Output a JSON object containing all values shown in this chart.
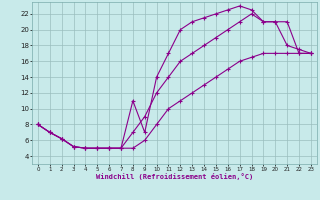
{
  "title": "",
  "xlabel": "Windchill (Refroidissement éolien,°C)",
  "bg_color": "#c8eaea",
  "line_color": "#8b008b",
  "grid_color": "#9bbebe",
  "xlim": [
    -0.5,
    23.5
  ],
  "ylim": [
    3,
    23.5
  ],
  "xticks": [
    0,
    1,
    2,
    3,
    4,
    5,
    6,
    7,
    8,
    9,
    10,
    11,
    12,
    13,
    14,
    15,
    16,
    17,
    18,
    19,
    20,
    21,
    22,
    23
  ],
  "yticks": [
    4,
    6,
    8,
    10,
    12,
    14,
    16,
    18,
    20,
    22
  ],
  "curve1_x": [
    0,
    1,
    2,
    3,
    4,
    5,
    6,
    7,
    8,
    9,
    10,
    11,
    12,
    13,
    14,
    15,
    16,
    17,
    18,
    19,
    20,
    21,
    22,
    23
  ],
  "curve1_y": [
    8,
    7,
    6.2,
    5.2,
    5,
    5,
    5,
    5,
    11,
    7,
    14,
    17,
    20,
    21,
    21.5,
    22,
    22.5,
    23,
    22.5,
    21,
    21,
    18,
    17.5,
    17
  ],
  "curve2_x": [
    0,
    1,
    2,
    3,
    4,
    5,
    6,
    7,
    8,
    9,
    10,
    11,
    12,
    13,
    14,
    15,
    16,
    17,
    18,
    19,
    20,
    21,
    22,
    23
  ],
  "curve2_y": [
    8,
    7,
    6.2,
    5.2,
    5,
    5,
    5,
    5,
    7,
    9,
    12,
    14,
    16,
    17,
    18,
    19,
    20,
    21,
    22,
    21,
    21,
    21,
    17,
    17
  ],
  "curve3_x": [
    0,
    1,
    2,
    3,
    4,
    5,
    6,
    7,
    8,
    9,
    10,
    11,
    12,
    13,
    14,
    15,
    16,
    17,
    18,
    19,
    20,
    21,
    22,
    23
  ],
  "curve3_y": [
    8,
    7,
    6.2,
    5.2,
    5,
    5,
    5,
    5,
    5,
    6,
    8,
    10,
    11,
    12,
    13,
    14,
    15,
    16,
    16.5,
    17,
    17,
    17,
    17,
    17
  ]
}
